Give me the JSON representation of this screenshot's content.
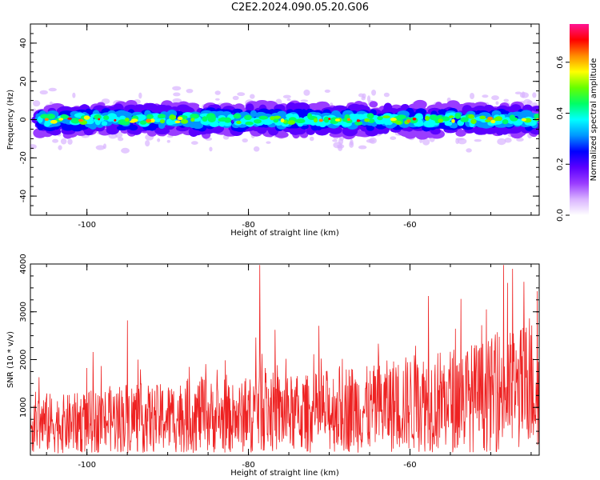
{
  "title": "C2E2.2024.090.05.20.G06",
  "chart_data": [
    {
      "type": "heatmap",
      "xlabel": "Height of straight line (km)",
      "ylabel": "Frequency (Hz)",
      "xlim": [
        -107,
        -44
      ],
      "ylim": [
        -50,
        50
      ],
      "xticks": [
        -100,
        -80,
        -60
      ],
      "yticks": [
        -40,
        -20,
        0,
        20,
        40
      ],
      "band_center_hz": 0,
      "band_halfwidth_hz": 8,
      "colorbar": {
        "label": "Normalized spectral amplitude",
        "range": [
          0.0,
          0.75
        ],
        "ticks": [
          "0.0",
          "0.2",
          "0.4",
          "0.6"
        ],
        "colormap": [
          "#ffffff",
          "#d9b3ff",
          "#9a3cff",
          "#5b00ff",
          "#0000ff",
          "#0096ff",
          "#00ffff",
          "#00ff66",
          "#66ff00",
          "#ffff00",
          "#ff8c00",
          "#ff0000",
          "#ff1493"
        ]
      },
      "grid": false
    },
    {
      "type": "line",
      "xlabel": "Height of straight line (km)",
      "ylabel": "SNR (10 * v/v)",
      "xlim": [
        -107,
        -44
      ],
      "ylim": [
        0,
        4000
      ],
      "xticks": [
        -100,
        -80,
        -60
      ],
      "yticks": [
        1000,
        2000,
        3000,
        4000
      ],
      "color": "#ee2222",
      "series": [
        {
          "x": [
            -107,
            -103,
            -99,
            -95,
            -92,
            -89,
            -86,
            -83,
            -80,
            -78.6,
            -77,
            -74,
            -71,
            -68,
            -65,
            -62,
            -59,
            -56,
            -53,
            -50,
            -48.4,
            -47,
            -45.4,
            -44
          ],
          "y": [
            700,
            650,
            700,
            800,
            750,
            800,
            850,
            750,
            800,
            1100,
            900,
            850,
            900,
            1000,
            950,
            1050,
            1100,
            1150,
            1200,
            1250,
            1400,
            1300,
            1500,
            1450
          ]
        }
      ],
      "peaks": [
        {
          "x": -78.6,
          "y": 3980
        },
        {
          "x": -48.4,
          "y": 3980
        },
        {
          "x": -47.3,
          "y": 3900
        },
        {
          "x": -57.7,
          "y": 3330
        },
        {
          "x": -53.7,
          "y": 3270
        },
        {
          "x": -95.0,
          "y": 2820
        }
      ],
      "grid": false
    }
  ]
}
